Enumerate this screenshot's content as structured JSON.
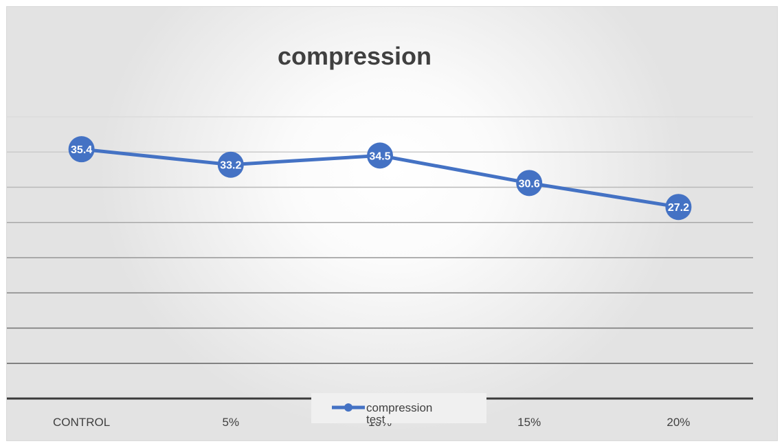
{
  "chart_data": {
    "type": "line",
    "title": "compression",
    "categories": [
      "CONTROL",
      "5%",
      "10%",
      "15%",
      "20%"
    ],
    "series": [
      {
        "name": "compression test",
        "values": [
          35.4,
          33.2,
          34.5,
          30.6,
          27.2
        ],
        "color": "#4472c4"
      }
    ],
    "data_labels": [
      "35.4",
      "33.2",
      "34.5",
      "30.6",
      "27.2"
    ],
    "xlabel": "",
    "ylabel": "",
    "ylim": [
      0,
      40
    ],
    "grid": true,
    "y_tick_labels_visible": false,
    "legend": {
      "position": "bottom",
      "entries": [
        "compression test"
      ]
    }
  }
}
